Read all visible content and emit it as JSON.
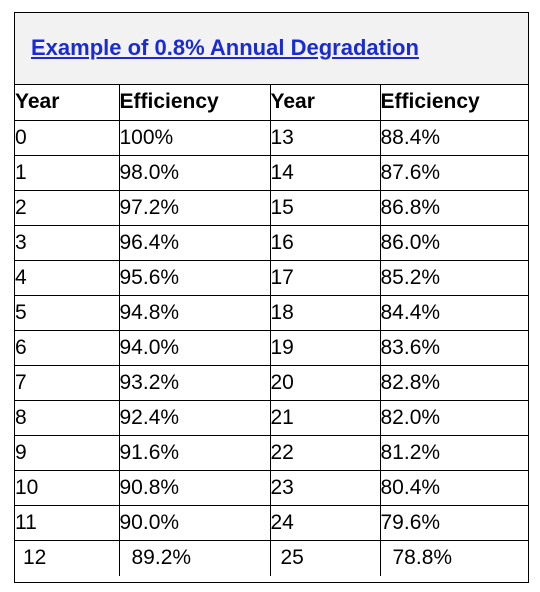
{
  "title": "Example of 0.8% Annual Degradation",
  "headers": [
    "Year",
    "Efficiency",
    "Year",
    "Efficiency"
  ],
  "rows": [
    [
      "0",
      "100%",
      "13",
      "88.4%"
    ],
    [
      "1",
      "98.0%",
      "14",
      "87.6%"
    ],
    [
      "2",
      "97.2%",
      "15",
      "86.8%"
    ],
    [
      "3",
      "96.4%",
      "16",
      "86.0%"
    ],
    [
      "4",
      "95.6%",
      "17",
      "85.2%"
    ],
    [
      "5",
      "94.8%",
      "18",
      "84.4%"
    ],
    [
      "6",
      "94.0%",
      "19",
      "83.6%"
    ],
    [
      "7",
      "93.2%",
      "20",
      "82.8%"
    ],
    [
      "8",
      "92.4%",
      "21",
      "82.0%"
    ],
    [
      "9",
      "91.6%",
      "22",
      "81.2%"
    ],
    [
      "10",
      "90.8%",
      "23",
      "80.4%"
    ],
    [
      "11",
      "90.0%",
      "24",
      "79.6%"
    ],
    [
      "12",
      "89.2%",
      "25",
      "78.8%"
    ]
  ]
}
